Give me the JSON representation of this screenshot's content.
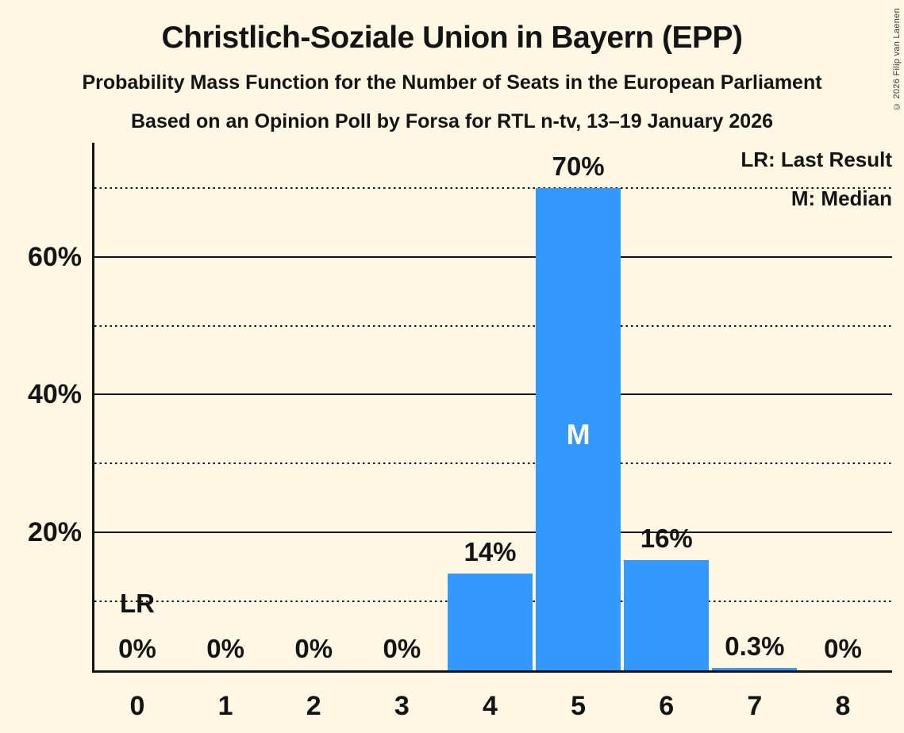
{
  "title": "Christlich-Soziale Union in Bayern (EPP)",
  "subtitles": [
    "Probability Mass Function for the Number of Seats in the European Parliament",
    "Based on an Opinion Poll by Forsa for RTL n-tv, 13–19 January 2026"
  ],
  "copyright": "© 2026 Filip van Laenen",
  "legend": {
    "last_result": "LR: Last Result",
    "median": "M: Median"
  },
  "colors": {
    "background": "#FDF7E3",
    "bar": "#3399FF",
    "text": "#141414",
    "median_text": "#FDF7E3"
  },
  "chart_data": {
    "type": "bar",
    "categories": [
      "0",
      "1",
      "2",
      "3",
      "4",
      "5",
      "6",
      "7",
      "8"
    ],
    "values": [
      0,
      0,
      0,
      0,
      14,
      70,
      16,
      0.3,
      0
    ],
    "value_labels": [
      "0%",
      "0%",
      "0%",
      "0%",
      "14%",
      "70%",
      "16%",
      "0.3%",
      "0%"
    ],
    "y_ticks": [
      {
        "value": 20,
        "label": "20%"
      },
      {
        "value": 40,
        "label": "40%"
      },
      {
        "value": 60,
        "label": "60%"
      }
    ],
    "solid_gridlines_pct": [
      20,
      40,
      60
    ],
    "dotted_gridlines_pct": [
      10,
      30,
      50,
      70
    ],
    "ylim": [
      0,
      76.5
    ],
    "grid": true,
    "legend_position": "top-right",
    "median": {
      "seat_index": 5,
      "marker": "M"
    },
    "last_result": {
      "seat_index": 0,
      "marker": "LR"
    }
  }
}
